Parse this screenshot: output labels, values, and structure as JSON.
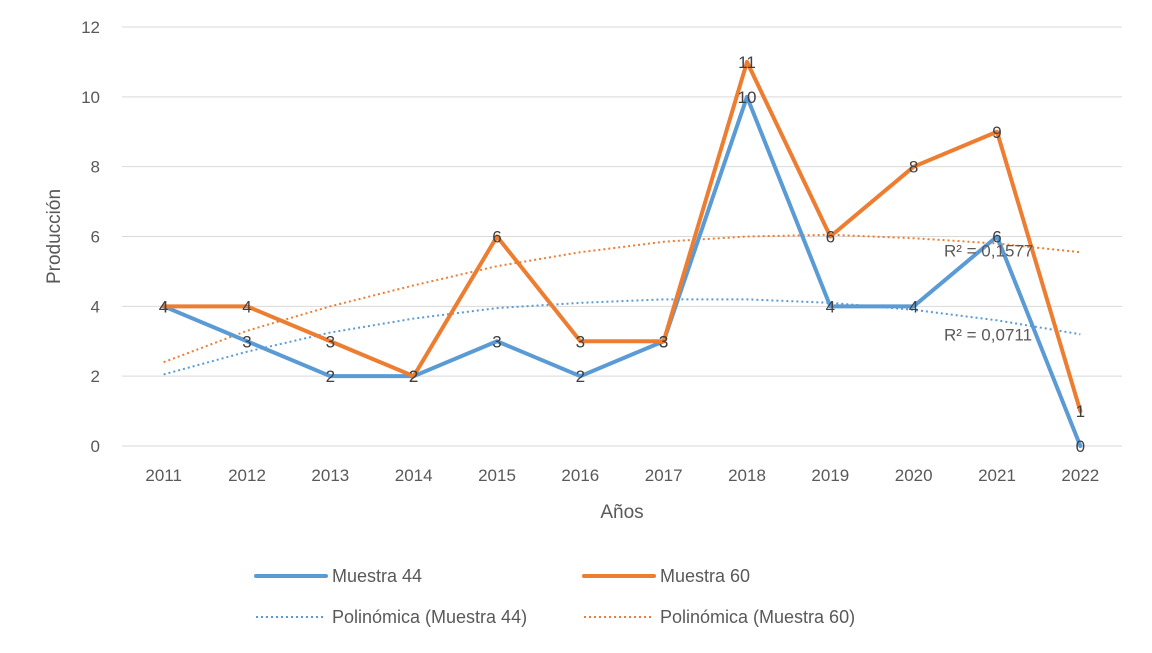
{
  "chart_data": {
    "type": "line",
    "title": "",
    "xlabel": "Años",
    "ylabel": "Producción",
    "ylim": [
      0,
      12
    ],
    "yticks": [
      0,
      2,
      4,
      6,
      8,
      10,
      12
    ],
    "grid": true,
    "legend_position": "bottom",
    "categories": [
      "2011",
      "2012",
      "2013",
      "2014",
      "2015",
      "2016",
      "2017",
      "2018",
      "2019",
      "2020",
      "2021",
      "2022"
    ],
    "series": [
      {
        "name": "Muestra 44",
        "color": "#5B9BD5",
        "values": [
          4,
          3,
          2,
          2,
          3,
          2,
          3,
          10,
          4,
          4,
          6,
          0
        ]
      },
      {
        "name": "Muestra 60",
        "color": "#ED7D31",
        "values": [
          4,
          4,
          3,
          2,
          6,
          3,
          3,
          11,
          6,
          8,
          9,
          1
        ]
      }
    ],
    "trendlines": [
      {
        "name": "Polinómica (Muestra 44)",
        "color": "#5B9BD5",
        "values": [
          2.05,
          2.7,
          3.25,
          3.65,
          3.95,
          4.1,
          4.2,
          4.2,
          4.1,
          3.9,
          3.6,
          3.2
        ],
        "r2_label": "R² = 0,0711",
        "r2_value": 3.2
      },
      {
        "name": "Polinómica (Muestra 60)",
        "color": "#ED7D31",
        "values": [
          2.4,
          3.3,
          4.0,
          4.6,
          5.15,
          5.55,
          5.85,
          6.0,
          6.05,
          5.95,
          5.8,
          5.55
        ],
        "r2_label": "R² = 0,1577",
        "r2_value": 5.6
      }
    ]
  }
}
